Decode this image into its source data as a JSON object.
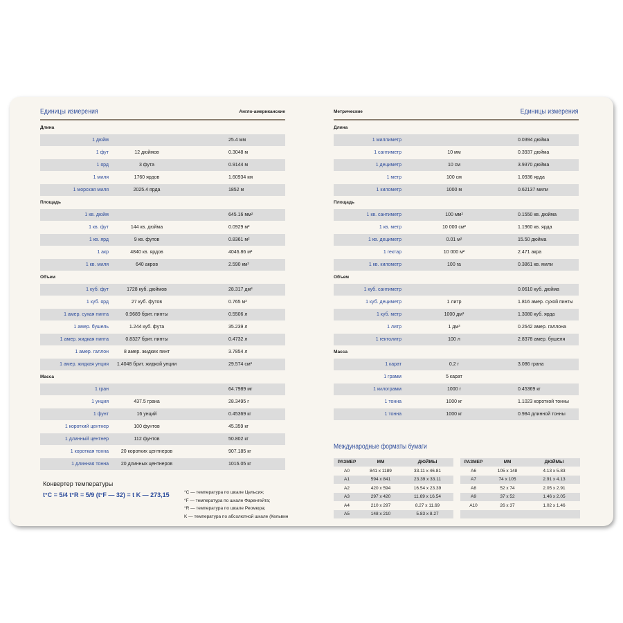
{
  "left": {
    "title": "Единицы измерения",
    "subtitle": "Англо-американские",
    "sections": [
      {
        "label": "Длина",
        "rows": [
          [
            "1 дюйм",
            "",
            "25.4 мм"
          ],
          [
            "1 фут",
            "12 дюймов",
            "0.3048 м"
          ],
          [
            "1 ярд",
            "3 фута",
            "0.9144 м"
          ],
          [
            "1 миля",
            "1760 ярдов",
            "1.60934 км"
          ],
          [
            "1 морская миля",
            "2025.4 ярда",
            "1852 м"
          ]
        ]
      },
      {
        "label": "Площадь",
        "rows": [
          [
            "1 кв. дюйм",
            "",
            "645.16 мм²"
          ],
          [
            "1 кв. фут",
            "144 кв. дюйма",
            "0.0929 м²"
          ],
          [
            "1 кв. ярд",
            "9 кв. футов",
            "0.8361 м²"
          ],
          [
            "1 акр",
            "4840 кв. ярдов",
            "4046.86 м²"
          ],
          [
            "1 кв. миля",
            "640 акров",
            "2.590 км²"
          ]
        ]
      },
      {
        "label": "Объем",
        "rows": [
          [
            "1 куб. фут",
            "1728 куб. дюймов",
            "28.317 дм³"
          ],
          [
            "1 куб. ярд",
            "27 куб. футов",
            "0.765 м³"
          ],
          [
            "1 амер. сухая пинта",
            "0.9689 брит. пинты",
            "0.5506 л"
          ],
          [
            "1 амер. бушель",
            "1.244 куб. фута",
            "35.239 л"
          ],
          [
            "1 амер. жидкая пинта",
            "0.8327 брит. пинты",
            "0.4732 л"
          ],
          [
            "1 амер. галлон",
            "8 амер. жидких пинт",
            "3.7854 л"
          ],
          [
            "1 амер. жидкая унция",
            "1.4048 брит. жидкой унции",
            "29.574 см³"
          ]
        ]
      },
      {
        "label": "Масса",
        "rows": [
          [
            "1 гран",
            "",
            "64.7989 мг"
          ],
          [
            "1 унция",
            "437.5 грана",
            "28.3495 г"
          ],
          [
            "1 фунт",
            "16 унций",
            "0.45369 кг"
          ],
          [
            "1 короткий центнер",
            "100 фунтов",
            "45.359 кг"
          ],
          [
            "1 длинный центнер",
            "112 фунтов",
            "50.802 кг"
          ],
          [
            "1 короткая тонна",
            "20 коротких центнеров",
            "907.185 кг"
          ],
          [
            "1 длинная тонна",
            "20 длинных центнеров",
            "1016.05 кг"
          ]
        ]
      }
    ],
    "converter": {
      "title": "Конвертер температуры",
      "formula": "t°C = 5/4 t°R = 5/9 (t°F — 32) = t K — 273,15",
      "notes": [
        "°C — температура по шкале Цельсия;",
        "°F — температура по шкале Фаренгейта;",
        "°R — температура по шкале Реомюра;",
        "K — температура по абсолютной шкале (Кельвин"
      ]
    }
  },
  "right": {
    "title": "Единицы измерения",
    "subtitle": "Метрические",
    "sections": [
      {
        "label": "Длина",
        "rows": [
          [
            "1 миллиметр",
            "",
            "0.0394 дюйма"
          ],
          [
            "1 сантиметр",
            "10 мм",
            "0.3937 дюйма"
          ],
          [
            "1 дециметр",
            "10 см",
            "3.9370 дюйма"
          ],
          [
            "1 метр",
            "100 см",
            "1.0936 ярда"
          ],
          [
            "1 километр",
            "1000 м",
            "0.62137 мили"
          ]
        ]
      },
      {
        "label": "Площадь",
        "rows": [
          [
            "1 кв. сантиметр",
            "100 мм²",
            "0.1550 кв. дюйма"
          ],
          [
            "1 кв. метр",
            "10 000 см²",
            "1.1960 кв. ярда"
          ],
          [
            "1 кв. дециметр",
            "0.01 м²",
            "15.50 дюйма"
          ],
          [
            "1 гектар",
            "10 000 м²",
            "2.471 акра"
          ],
          [
            "1 кв. километр",
            "100 га",
            "0.3861 кв. мили"
          ]
        ]
      },
      {
        "label": "Объем",
        "rows": [
          [
            "1 куб. сантиметр",
            "",
            "0.0610 куб. дюйма"
          ],
          [
            "1 куб. дециметр",
            "1 литр",
            "1.816 амер. сухой пинты"
          ],
          [
            "1 куб. метр",
            "1000 дм³",
            "1.3080 куб. ярда"
          ],
          [
            "1 литр",
            "1 дм³",
            "0.2642 амер. галлона"
          ],
          [
            "1 гектолитр",
            "100 л",
            "2.8378 амер. бушеля"
          ]
        ]
      },
      {
        "label": "Масса",
        "rows": [
          [
            "1 карат",
            "0.2 г",
            "3.086 грана"
          ],
          [
            "1 грамм",
            "5 карат",
            ""
          ],
          [
            "1 килограмм",
            "1000 г",
            "0.45369 кг"
          ],
          [
            "1 тонна",
            "1000 кг",
            "1.1023 короткой тонны"
          ],
          [
            "1 тонна",
            "1000 кг",
            "0.984 длинной тонны"
          ]
        ]
      }
    ],
    "paper": {
      "title": "Международные форматы бумаги",
      "headers": [
        "РАЗМЕР",
        "ММ",
        "ДЮЙМЫ"
      ],
      "table1": [
        [
          "A0",
          "841 x 1189",
          "33.11 x 46.81"
        ],
        [
          "A1",
          "594 x 841",
          "23.39 x 33.11"
        ],
        [
          "A2",
          "420 x 594",
          "16.54 x 23.39"
        ],
        [
          "A3",
          "297 x 420",
          "11.69 x 16.54"
        ],
        [
          "A4",
          "210 x 297",
          "8.27 x 11.69"
        ],
        [
          "A5",
          "148 x 210",
          "5.83 x 8.27"
        ]
      ],
      "table2": [
        [
          "A6",
          "105 x 148",
          "4.13 x 5.83"
        ],
        [
          "A7",
          "74 x 105",
          "2.91 x 4.13"
        ],
        [
          "A8",
          "52 x 74",
          "2.05 x 2.91"
        ],
        [
          "A9",
          "37 x 52",
          "1.46 x 2.05"
        ],
        [
          "A10",
          "26 x 37",
          "1.02 x 1.46"
        ],
        [
          "",
          "",
          ""
        ]
      ]
    }
  },
  "colors": {
    "accent": "#2d4c9c",
    "row_shade": "#dcdcdc",
    "page": "#f8f5ef",
    "rule": "#8a7f70"
  }
}
